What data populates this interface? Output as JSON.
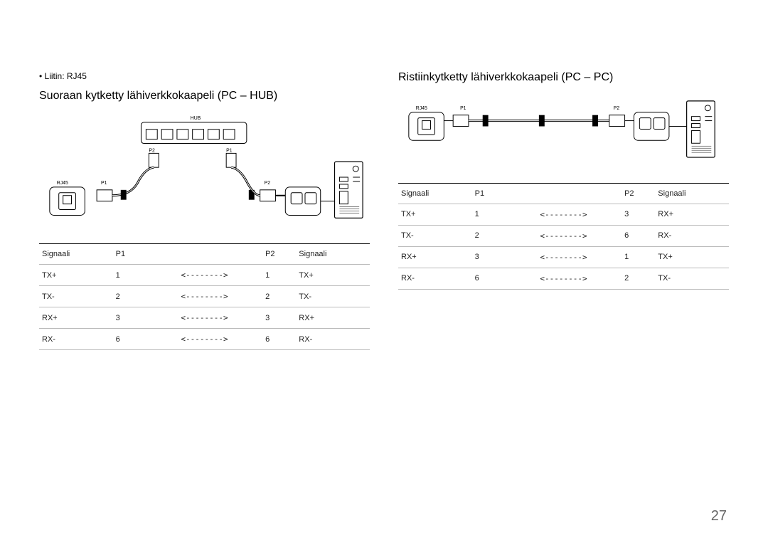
{
  "page_number": "27",
  "left": {
    "bullet": "Liitin: RJ45",
    "title": "Suoraan kytketty lähiverkkokaapeli (PC – HUB)",
    "diagram": {
      "hub_label": "HUB",
      "rj45_label": "RJ45",
      "p1_label": "P1",
      "p2_label": "P2",
      "p1_hub_label": "P1",
      "p2_hub_label": "P2"
    },
    "table": {
      "headers": [
        "Signaali",
        "P1",
        "",
        "P2",
        "Signaali"
      ],
      "arrow": "<-------->",
      "rows": [
        [
          "TX+",
          "1",
          "1",
          "TX+"
        ],
        [
          "TX-",
          "2",
          "2",
          "TX-"
        ],
        [
          "RX+",
          "3",
          "3",
          "RX+"
        ],
        [
          "RX-",
          "6",
          "6",
          "RX-"
        ]
      ]
    }
  },
  "right": {
    "title": "Ristiinkytketty lähiverkkokaapeli (PC – PC)",
    "diagram": {
      "rj45_label": "RJ45",
      "p1_label": "P1",
      "p2_label": "P2"
    },
    "table": {
      "headers": [
        "Signaali",
        "P1",
        "",
        "P2",
        "Signaali"
      ],
      "arrow": "<-------->",
      "rows": [
        [
          "TX+",
          "1",
          "3",
          "RX+"
        ],
        [
          "TX-",
          "2",
          "6",
          "RX-"
        ],
        [
          "RX+",
          "3",
          "1",
          "TX+"
        ],
        [
          "RX-",
          "6",
          "2",
          "TX-"
        ]
      ]
    }
  },
  "style": {
    "body_bg": "#ffffff",
    "text_color": "#000000",
    "table_border": "#bbbbbb",
    "table_top_border": "#000000",
    "page_num_color": "#666666",
    "title_fontsize": 16,
    "body_fontsize": 12,
    "table_fontsize": 11,
    "page_num_fontsize": 20
  }
}
